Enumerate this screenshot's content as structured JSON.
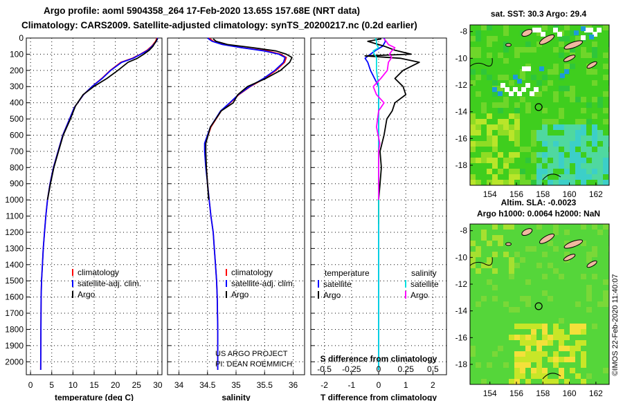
{
  "header": {
    "line1": "Argo profile: aoml 5904358_264 17-Feb-2020 13.65S 157.68E (NRT data)",
    "line2": "Climatology: CARS2009. Satellite-adjusted climatology: synTS_20200217.nc (0.2d earlier)"
  },
  "colors": {
    "climatology": "#ff0000",
    "satellite": "#0000ff",
    "argo": "#000000",
    "sat_salinity": "#00e0e0",
    "argo_salinity": "#ff00ff",
    "grid": "#000000"
  },
  "chart_data": [
    {
      "type": "line",
      "title": "",
      "xlabel": "temperature (deg C)",
      "ylabel": "",
      "xlim": [
        -1,
        31
      ],
      "ylim": [
        2080,
        0
      ],
      "xticks": [
        "0",
        "5",
        "10",
        "15",
        "20",
        "25",
        "30"
      ],
      "yticks": [
        "0",
        "100",
        "200",
        "300",
        "400",
        "500",
        "600",
        "700",
        "800",
        "900",
        "1000",
        "1100",
        "1200",
        "1300",
        "1400",
        "1500",
        "1600",
        "1700",
        "1800",
        "1900",
        "2000"
      ],
      "legend": [
        "climatology",
        "satellite-adj. clim.",
        "Argo"
      ],
      "series": [
        {
          "name": "climatology",
          "x": [
            29.8,
            29.5,
            28.6,
            27.5,
            25.9,
            24.0,
            21.3,
            18.8,
            16.8,
            14.5,
            12.5,
            10.3,
            9.2,
            7.6,
            6.5,
            5.4,
            4.6,
            4.0,
            3.6,
            3.3,
            3.0,
            2.8,
            2.6,
            2.5,
            2.45,
            2.4
          ],
          "y": [
            0,
            20,
            50,
            75,
            100,
            125,
            150,
            200,
            250,
            300,
            350,
            430,
            500,
            600,
            700,
            800,
            900,
            1000,
            1100,
            1200,
            1300,
            1400,
            1500,
            1600,
            1800,
            2050
          ]
        },
        {
          "name": "satellite-adj. clim.",
          "x": [
            30.0,
            29.7,
            28.7,
            27.7,
            26.0,
            24.2,
            21.5,
            18.9,
            16.9,
            14.5,
            12.5,
            10.3,
            9.2,
            7.6,
            6.5,
            5.4,
            4.6,
            4.0,
            3.6,
            3.3,
            3.0,
            2.8,
            2.6,
            2.5,
            2.45,
            2.4
          ],
          "y": [
            0,
            20,
            50,
            75,
            100,
            125,
            150,
            200,
            250,
            300,
            350,
            430,
            500,
            600,
            700,
            800,
            900,
            1000,
            1100,
            1200,
            1300,
            1400,
            1500,
            1600,
            1800,
            2050
          ]
        },
        {
          "name": "Argo",
          "x": [
            29.9,
            29.6,
            28.9,
            28.0,
            26.7,
            25.2,
            23.0,
            20.6,
            18.0,
            14.9,
            12.4,
            10.6,
            9.4,
            7.7,
            6.6,
            5.5,
            4.7,
            4.0
          ],
          "y": [
            5,
            20,
            50,
            75,
            100,
            125,
            150,
            200,
            250,
            300,
            350,
            420,
            500,
            600,
            700,
            800,
            900,
            1000
          ]
        }
      ]
    },
    {
      "type": "line",
      "title": "",
      "xlabel": "salinity",
      "ylabel": "",
      "xlim": [
        33.8,
        36.2
      ],
      "ylim": [
        2080,
        0
      ],
      "xticks": [
        "34",
        "34.5",
        "35",
        "35.5",
        "36"
      ],
      "legend": [
        "climatology",
        "satellite-adj. clim.",
        "Argo"
      ],
      "annotations": [
        "US ARGO PROJECT",
        "PI: DEAN ROEMMICH"
      ],
      "series": [
        {
          "name": "climatology",
          "x": [
            34.53,
            34.6,
            34.78,
            35.1,
            35.55,
            35.78,
            35.88,
            35.85,
            35.7,
            35.5,
            35.25,
            35.05,
            34.9,
            34.74,
            34.56,
            34.46,
            34.46,
            34.48,
            34.5,
            34.53,
            34.56,
            34.6,
            34.62,
            34.64,
            34.66,
            34.67,
            34.68,
            34.68
          ],
          "y": [
            0,
            20,
            40,
            60,
            80,
            100,
            120,
            150,
            200,
            250,
            300,
            350,
            400,
            450,
            550,
            650,
            700,
            800,
            900,
            1000,
            1100,
            1200,
            1300,
            1400,
            1500,
            1600,
            1800,
            2050
          ]
        },
        {
          "name": "satellite-adj. clim.",
          "x": [
            34.5,
            34.58,
            34.76,
            35.1,
            35.5,
            35.75,
            35.86,
            35.83,
            35.68,
            35.48,
            35.24,
            35.04,
            34.89,
            34.73,
            34.55,
            34.45,
            34.45,
            34.47,
            34.5,
            34.53,
            34.56,
            34.6,
            34.62,
            34.64,
            34.66,
            34.67,
            34.68,
            34.68
          ],
          "y": [
            0,
            20,
            40,
            60,
            80,
            100,
            120,
            150,
            200,
            250,
            300,
            350,
            400,
            450,
            550,
            650,
            700,
            800,
            900,
            1000,
            1100,
            1200,
            1300,
            1400,
            1500,
            1600,
            1800,
            2050
          ]
        },
        {
          "name": "Argo",
          "x": [
            34.6,
            34.65,
            34.85,
            35.3,
            35.7,
            35.88,
            35.98,
            35.94,
            35.78,
            35.52,
            35.2,
            35.03,
            34.95,
            34.74,
            34.55,
            34.47,
            34.47,
            34.48,
            34.5,
            34.52
          ],
          "y": [
            5,
            20,
            40,
            60,
            80,
            100,
            120,
            150,
            200,
            250,
            300,
            350,
            400,
            450,
            550,
            650,
            700,
            800,
            900,
            1000
          ]
        }
      ]
    },
    {
      "type": "line",
      "title": "",
      "xlabel": "T difference from climatology",
      "ylabel": "",
      "xlim": [
        -2.5,
        2.5
      ],
      "ylim": [
        2080,
        0
      ],
      "xticks": [
        "-2",
        "-1",
        "0",
        "1",
        "2"
      ],
      "secondary_axis": {
        "label": "S difference from climatology",
        "ticks": [
          "-0.5",
          "-0.25",
          "0",
          "0.25",
          "0.5"
        ]
      },
      "legend": [
        "temperature",
        "satellite",
        "Argo",
        "salinity",
        "satellite",
        "Argo"
      ],
      "series": [
        {
          "name": "temperature satellite",
          "x": [
            0.2,
            0.25,
            0.15,
            -0.1,
            -0.3,
            -0.5,
            -0.4,
            -0.3,
            -0.15,
            0.0,
            0.0,
            0.0,
            0.0,
            0.0,
            0.0,
            0.0,
            0.0,
            0.0
          ],
          "y": [
            0,
            20,
            50,
            75,
            100,
            125,
            150,
            200,
            250,
            300,
            350,
            430,
            500,
            600,
            700,
            800,
            1000,
            2050
          ]
        },
        {
          "name": "temperature Argo",
          "x": [
            0.1,
            -0.4,
            0.2,
            0.6,
            1.2,
            -0.5,
            0.8,
            1.5,
            0.9,
            0.6,
            0.9,
            1.0,
            0.6,
            0.5,
            0.3,
            0.2,
            0.05,
            0.1,
            0.05,
            0.0,
            0.0
          ],
          "y": [
            5,
            20,
            50,
            75,
            100,
            110,
            125,
            150,
            200,
            250,
            300,
            350,
            400,
            450,
            500,
            600,
            700,
            800,
            900,
            1000,
            1150
          ]
        },
        {
          "name": "salinity satellite",
          "x": [
            -0.03,
            -0.02,
            -0.02,
            0.0,
            -0.05,
            -0.04,
            -0.02,
            -0.02,
            -0.02,
            -0.01,
            0.0,
            0.0,
            0.0
          ],
          "y": [
            0,
            20,
            40,
            60,
            80,
            100,
            120,
            150,
            200,
            250,
            300,
            350,
            2050
          ]
        },
        {
          "name": "salinity Argo",
          "x": [
            0.05,
            0.07,
            0.09,
            0.15,
            0.12,
            0.1,
            0.12,
            0.09,
            0.08,
            0.02,
            -0.05,
            -0.02,
            0.05,
            0.0,
            -0.02,
            0.01,
            0.0,
            0.0,
            0.0,
            0.0
          ],
          "y": [
            5,
            20,
            40,
            60,
            80,
            100,
            120,
            150,
            200,
            250,
            300,
            350,
            400,
            450,
            550,
            650,
            700,
            800,
            900,
            1000
          ]
        }
      ]
    },
    {
      "type": "heatmap",
      "title": "sat. SST: 30.3 Argo: 29.4",
      "xlabel": "",
      "ylabel": "",
      "xlim": [
        152.5,
        163
      ],
      "ylim": [
        -19.5,
        -7.5
      ],
      "xticks": [
        "154",
        "156",
        "158",
        "160",
        "162"
      ],
      "yticks": [
        "-8",
        "-10",
        "-12",
        "-14",
        "-16",
        "-18"
      ],
      "marker": {
        "lon": 157.68,
        "lat": -13.65
      }
    },
    {
      "type": "heatmap",
      "title": "Altim. SLA: -0.0023",
      "subtitle": "Argo h1000: 0.0064 h2000: NaN",
      "xlabel": "",
      "ylabel": "",
      "xlim": [
        152.5,
        163
      ],
      "ylim": [
        -19.5,
        -7.5
      ],
      "xticks": [
        "154",
        "156",
        "158",
        "160",
        "162"
      ],
      "yticks": [
        "-8",
        "-10",
        "-12",
        "-14",
        "-16",
        "-18"
      ],
      "marker": {
        "lon": 157.68,
        "lat": -13.65
      },
      "side_label": "©IMOS 22-Feb-2020 11:40:07"
    }
  ]
}
